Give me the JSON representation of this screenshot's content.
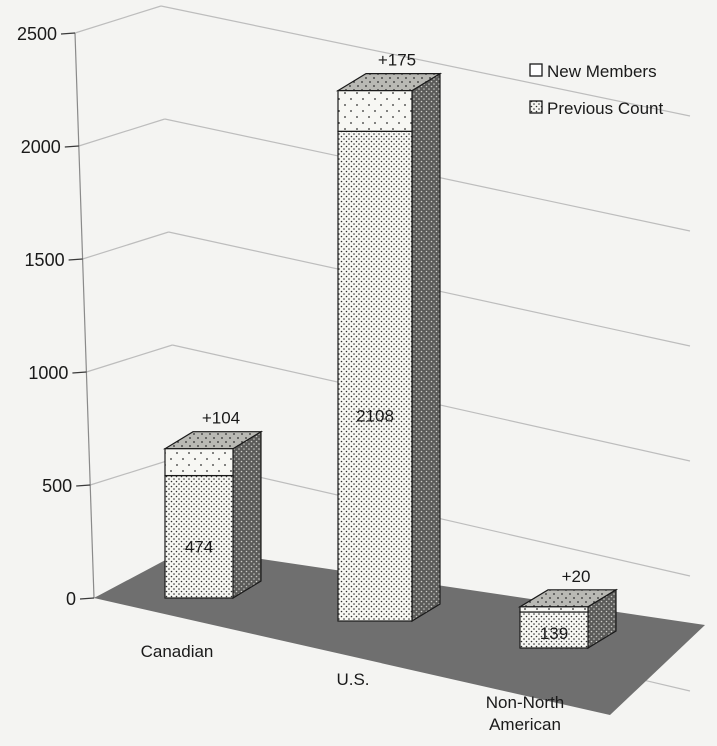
{
  "chart_data": {
    "type": "bar",
    "stacked": true,
    "three_d": true,
    "title": "",
    "xlabel": "",
    "ylabel": "",
    "categories": [
      "Canadian",
      "U.S.",
      "Non-North American"
    ],
    "series": [
      {
        "name": "Previous Count",
        "values": [
          474,
          2108,
          139
        ],
        "labels": [
          "474",
          "2108",
          "139"
        ]
      },
      {
        "name": "New Members",
        "values": [
          104,
          175,
          20
        ],
        "labels": [
          "+104",
          "+175",
          "+20"
        ]
      }
    ],
    "ylim": [
      0,
      2500
    ],
    "yticks": [
      0,
      500,
      1000,
      1500,
      2000,
      2500
    ],
    "ytick_labels": [
      "0",
      "500",
      "1000",
      "1500",
      "2000",
      "2500"
    ],
    "grid": true,
    "legend_position": "top-right",
    "legend_order": [
      "New Members",
      "Previous Count"
    ],
    "colors": {
      "floor": "#6f6f6f",
      "gridline": "#bdbdbd",
      "front": "#f7f7f3",
      "top": "#b9b9b4",
      "side": "#5b5b59",
      "dots": "#2e2e2e"
    }
  }
}
